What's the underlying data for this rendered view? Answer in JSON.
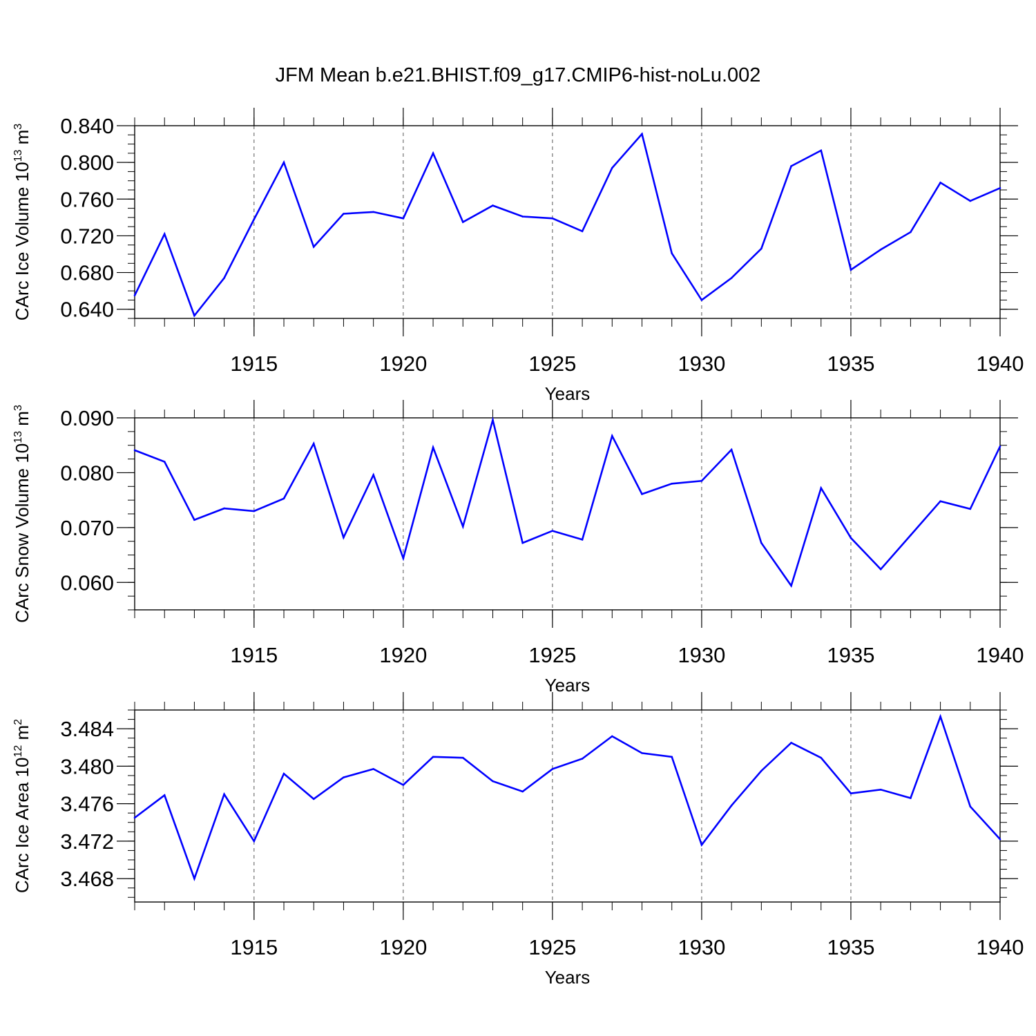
{
  "title": "JFM Mean b.e21.BHIST.f09_g17.CMIP6-hist-noLu.002",
  "colors": {
    "line": "#0000ff",
    "axis": "#000000",
    "grid": "#555555"
  },
  "chart_data": [
    {
      "type": "line",
      "title": "JFM Mean b.e21.BHIST.f09_g17.CMIP6-hist-noLu.002",
      "ylabel": "CArc Ice Volume 10",
      "ylabel_exp": "13",
      "ylabel_unit": " m",
      "ylabel_unit_exp": "3",
      "xlabel": "Years",
      "xlim": [
        1911,
        1940
      ],
      "ylim": [
        0.63,
        0.84
      ],
      "yticks": [
        "0.640",
        "0.680",
        "0.720",
        "0.760",
        "0.800",
        "0.840"
      ],
      "xticks": [
        "1915",
        "1920",
        "1925",
        "1930",
        "1935",
        "1940"
      ],
      "x": [
        1911,
        1912,
        1913,
        1914,
        1915,
        1916,
        1917,
        1918,
        1919,
        1920,
        1921,
        1922,
        1923,
        1924,
        1925,
        1926,
        1927,
        1928,
        1929,
        1930,
        1931,
        1932,
        1933,
        1934,
        1935,
        1936,
        1937,
        1938,
        1939,
        1940
      ],
      "values": [
        0.655,
        0.722,
        0.633,
        0.674,
        0.738,
        0.8,
        0.708,
        0.744,
        0.746,
        0.739,
        0.81,
        0.735,
        0.753,
        0.741,
        0.739,
        0.725,
        0.794,
        0.831,
        0.701,
        0.65,
        0.674,
        0.706,
        0.796,
        0.813,
        0.683,
        0.705,
        0.724,
        0.778,
        0.758,
        0.772
      ]
    },
    {
      "type": "line",
      "ylabel": "CArc Snow Volume 10",
      "ylabel_exp": "13",
      "ylabel_unit": " m",
      "ylabel_unit_exp": "3",
      "xlabel": "Years",
      "xlim": [
        1911,
        1940
      ],
      "ylim": [
        0.055,
        0.09
      ],
      "yticks": [
        "0.060",
        "0.070",
        "0.080",
        "0.090"
      ],
      "xticks": [
        "1915",
        "1920",
        "1925",
        "1930",
        "1935",
        "1940"
      ],
      "x": [
        1911,
        1912,
        1913,
        1914,
        1915,
        1916,
        1917,
        1918,
        1919,
        1920,
        1921,
        1922,
        1923,
        1924,
        1925,
        1926,
        1927,
        1928,
        1929,
        1930,
        1931,
        1932,
        1933,
        1934,
        1935,
        1936,
        1937,
        1938,
        1939,
        1940
      ],
      "values": [
        0.0841,
        0.082,
        0.0714,
        0.0735,
        0.073,
        0.0753,
        0.0853,
        0.0682,
        0.0796,
        0.0644,
        0.0846,
        0.0702,
        0.0896,
        0.0672,
        0.0694,
        0.0678,
        0.0867,
        0.0761,
        0.078,
        0.0785,
        0.0842,
        0.0672,
        0.0594,
        0.0772,
        0.0681,
        0.0624,
        0.0686,
        0.0748,
        0.0734,
        0.0848
      ]
    },
    {
      "type": "line",
      "ylabel": "CArc Ice Area 10",
      "ylabel_exp": "12",
      "ylabel_unit": " m",
      "ylabel_unit_exp": "2",
      "xlabel": "Years",
      "xlim": [
        1911,
        1940
      ],
      "ylim": [
        3.4655,
        3.486
      ],
      "yticks": [
        "3.468",
        "3.472",
        "3.476",
        "3.480",
        "3.484"
      ],
      "xticks": [
        "1915",
        "1920",
        "1925",
        "1930",
        "1935",
        "1940"
      ],
      "x": [
        1911,
        1912,
        1913,
        1914,
        1915,
        1916,
        1917,
        1918,
        1919,
        1920,
        1921,
        1922,
        1923,
        1924,
        1925,
        1926,
        1927,
        1928,
        1929,
        1930,
        1931,
        1932,
        1933,
        1934,
        1935,
        1936,
        1937,
        1938,
        1939,
        1940
      ],
      "values": [
        3.4745,
        3.4769,
        3.468,
        3.477,
        3.472,
        3.4792,
        3.4765,
        3.4788,
        3.4797,
        3.478,
        3.481,
        3.4809,
        3.4784,
        3.4773,
        3.4797,
        3.4808,
        3.4832,
        3.4814,
        3.481,
        3.4716,
        3.4758,
        3.4795,
        3.4825,
        3.4809,
        3.4771,
        3.4775,
        3.4766,
        3.4853,
        3.4757,
        3.4722
      ]
    }
  ]
}
